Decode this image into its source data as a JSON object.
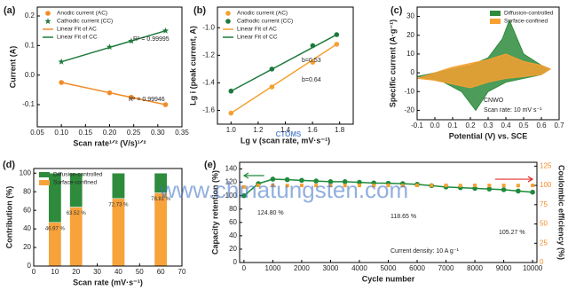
{
  "chart_data": [
    {
      "type": "scatter",
      "label": "(a)",
      "x_label": "Scan rate¹ᐟ² (V/s)¹ᐟ²",
      "y_label": "Current (A)",
      "xlim": [
        0.05,
        0.35
      ],
      "xticks": [
        0.05,
        {
          "value": 0.1,
          "label": "0.10"
        },
        0.15,
        {
          "value": 0.2,
          "label": "0.20"
        },
        0.25,
        {
          "value": 0.3,
          "label": "0.30"
        },
        0.35
      ],
      "ylim": [
        -0.175,
        0.23
      ],
      "yticks": [
        -0.1,
        {
          "value": 0,
          "label": "0.0"
        },
        0.1,
        0.2
      ],
      "legend": "upper left",
      "series": [
        {
          "name": "Anodic current (AC)",
          "color": "#f28c28",
          "marker": "circle",
          "x": [
            0.1,
            0.2,
            0.245,
            0.316
          ],
          "values": [
            -0.025,
            -0.06,
            -0.075,
            -0.1
          ]
        },
        {
          "name": "Cathodic current (CC)",
          "color": "#1e7a3c",
          "marker": "star",
          "x": [
            0.1,
            0.2,
            0.245,
            0.316
          ],
          "values": [
            0.045,
            0.095,
            0.115,
            0.15
          ]
        },
        {
          "name": "Linear Fit of AC",
          "color": "#f28c28",
          "line": true,
          "x": [
            0.1,
            0.316
          ],
          "values": [
            -0.025,
            -0.1
          ]
        },
        {
          "name": "Linear Fit of CC",
          "color": "#1e7a3c",
          "line": true,
          "x": [
            0.1,
            0.316
          ],
          "values": [
            0.045,
            0.15
          ]
        }
      ],
      "annotations": [
        "R² = 0.99995",
        "R² = 0.99946"
      ]
    },
    {
      "type": "scatter",
      "label": "(b)",
      "x_label": "Lg v (scan rate, mV·s⁻¹)",
      "y_label": "Lg i (peak current, A)",
      "xlim": [
        0.9,
        1.9
      ],
      "xticks": [
        {
          "value": 1,
          "label": "1.0"
        },
        1.2,
        1.4,
        1.6,
        1.8
      ],
      "ylim": [
        -1.7,
        -0.85
      ],
      "yticks": [
        -1.6,
        -1.4,
        -1.2,
        {
          "value": -1,
          "label": "-1.0"
        }
      ],
      "legend": "upper left",
      "series": [
        {
          "name": "Anodic current (AC)",
          "color": "#f5a030",
          "marker": "circle",
          "x": [
            1,
            1.301,
            1.602,
            1.778
          ],
          "values": [
            -1.62,
            -1.43,
            -1.25,
            -1.12
          ]
        },
        {
          "name": "Cathodic current (CC)",
          "color": "#1e7a3c",
          "marker": "circle",
          "x": [
            1,
            1.301,
            1.602,
            1.778
          ],
          "values": [
            -1.46,
            -1.3,
            -1.13,
            -1.05
          ]
        },
        {
          "name": "Linear Fit of AC",
          "color": "#f5a030",
          "line": true,
          "x": [
            1,
            1.778
          ],
          "values": [
            -1.62,
            -1.12
          ]
        },
        {
          "name": "Linear Fit of CC",
          "color": "#1e7a3c",
          "line": true,
          "x": [
            1,
            1.778
          ],
          "values": [
            -1.46,
            -1.05
          ]
        }
      ],
      "annotations": [
        "b=0.53",
        "b=0.64"
      ]
    },
    {
      "type": "area",
      "label": "(c)",
      "x_label": "Potential (V) vs. SCE",
      "y_label": "Specific current (A·g⁻¹)",
      "xlim": [
        -0.1,
        0.7
      ],
      "xticks": [
        -0.1,
        {
          "value": 0,
          "label": "0.0"
        },
        0.1,
        0.2,
        0.3,
        0.4,
        0.5,
        0.6,
        0.7
      ],
      "ylim": [
        -25,
        35
      ],
      "yticks": [
        -20,
        -10,
        0,
        10,
        20,
        30
      ],
      "legend": "upper right",
      "series": [
        {
          "name": "Diffusion-controlled",
          "color": "#2e8b3c",
          "x": [
            -0.1,
            0,
            0.1,
            0.2,
            0.3,
            0.38,
            0.42,
            0.5,
            0.6,
            0.65,
            0.6,
            0.5,
            0.4,
            0.3,
            0.23,
            0.15,
            0.05,
            -0.1
          ],
          "values": [
            -2,
            0,
            2,
            4,
            8,
            18,
            28,
            10,
            4,
            2,
            -1,
            -3,
            -5,
            -10,
            -20,
            -10,
            -5,
            -2
          ]
        },
        {
          "name": "Surface-confined",
          "color": "#f5a030",
          "x": [
            -0.1,
            0,
            0.1,
            0.2,
            0.3,
            0.4,
            0.5,
            0.6,
            0.65,
            0.6,
            0.5,
            0.4,
            0.3,
            0.2,
            0.1,
            0,
            -0.1
          ],
          "values": [
            -3,
            0,
            3,
            5,
            7,
            10,
            6,
            4,
            2,
            -1,
            -2,
            -3,
            -5,
            -8,
            -6,
            -4,
            -3
          ]
        }
      ],
      "annotations": [
        "CNWO",
        "Scan rate: 10 mV s⁻¹"
      ]
    },
    {
      "type": "bar",
      "label": "(d)",
      "x_label": "Scan rate (mV·s⁻¹)",
      "y_label": "Contribution (%)",
      "xlim": [
        0,
        70
      ],
      "xticks": [
        0,
        10,
        20,
        30,
        40,
        50,
        60,
        70
      ],
      "ylim": [
        0,
        105
      ],
      "yticks": [
        0,
        20,
        40,
        60,
        80,
        100
      ],
      "legend": "upper left",
      "x": [
        10,
        20,
        40,
        60
      ],
      "series": [
        {
          "name": "Diffusion-controlled",
          "color": "#2e8b3c",
          "values": [
            53.03,
            36.48,
            27.27,
            21.19
          ]
        },
        {
          "name": "Surface-confined",
          "color": "#f7a23b",
          "values": [
            46.97,
            63.52,
            72.73,
            78.81
          ],
          "value_labels": [
            "46.97 %",
            "63.52 %",
            "72.73 %",
            "78.81 %"
          ]
        }
      ]
    },
    {
      "type": "scatter",
      "label": "(e)",
      "x_label": "Cycle number",
      "y_label": "Capacity retention (%)",
      "y2_label": "Coulombic efficiency (%)",
      "xlim": [
        -150,
        10150
      ],
      "xticks": [
        0,
        1000,
        2000,
        3000,
        4000,
        5000,
        6000,
        7000,
        8000,
        9000,
        10000
      ],
      "ylim": [
        0,
        150
      ],
      "yticks": [
        0,
        20,
        40,
        60,
        80,
        100,
        120,
        140
      ],
      "y2lim": [
        0,
        130
      ],
      "y2ticks": [
        0,
        25,
        50,
        75,
        100,
        125
      ],
      "y2color": "#f28c28",
      "series": [
        {
          "color": "#1e8a3a",
          "marker": "circle",
          "line": true,
          "x": [
            0,
            500,
            1000,
            1500,
            2000,
            2500,
            3000,
            3500,
            4000,
            4500,
            5000,
            5500,
            6000,
            6500,
            7000,
            7500,
            8000,
            8500,
            9000,
            9500,
            10000
          ],
          "values": [
            100,
            118,
            124.8,
            124,
            123,
            122,
            121,
            121,
            120,
            119,
            118.65,
            118,
            117,
            115,
            113,
            112,
            111,
            110,
            109,
            107,
            105.27
          ]
        },
        {
          "color": "#f5a030",
          "marker": "square",
          "axis": "y2",
          "x": [
            0,
            500,
            1000,
            1500,
            2000,
            2500,
            3000,
            3500,
            4000,
            4500,
            5000,
            5500,
            6000,
            6500,
            7000,
            7500,
            8000,
            8500,
            9000,
            9500,
            10000
          ],
          "values": [
            98,
            100,
            100,
            99.8,
            100,
            99.9,
            100,
            99.8,
            100,
            99.9,
            100,
            99.8,
            100,
            99.9,
            100,
            99.8,
            100,
            99.9,
            100,
            99.8,
            100
          ]
        }
      ],
      "annotations": [
        "124.80 %",
        "118.65 %",
        "105.27 %",
        "Current density: 10 A g⁻¹"
      ]
    }
  ],
  "watermark": {
    "url": "www.chinatungsten.com",
    "logo": "CTOMS"
  }
}
